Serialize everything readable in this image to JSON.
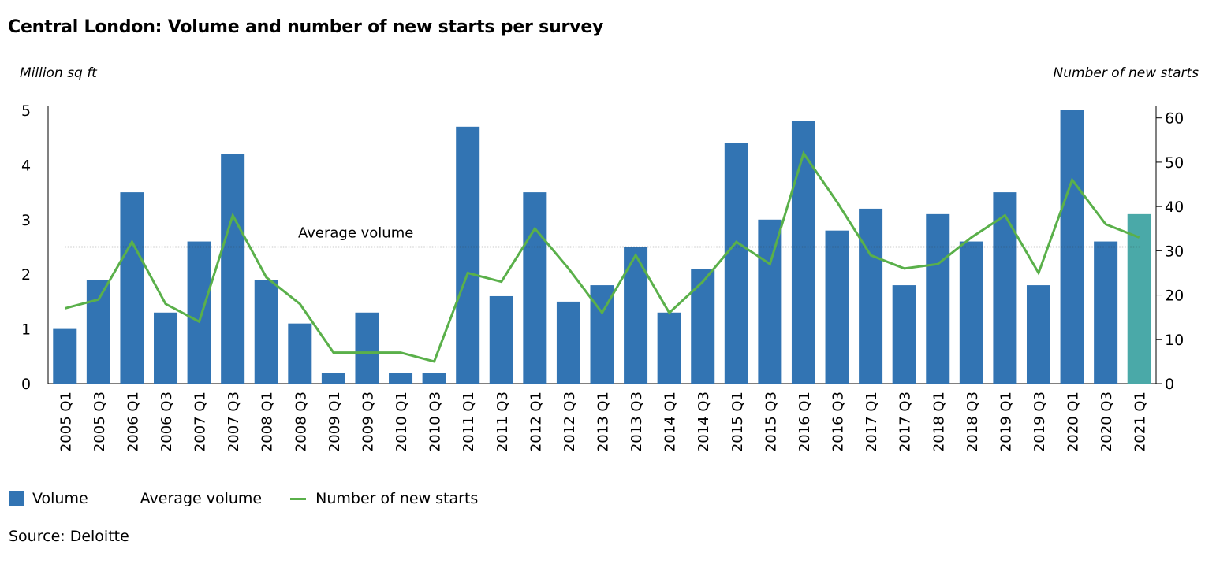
{
  "title": "Central London: Volume and number of new starts per survey",
  "source": "Source: Deloitte",
  "colors": {
    "volume": "#3274b3",
    "volume_highlight": "#4aa9a8",
    "starts_line": "#5ab04a",
    "average_line": "#333333"
  },
  "legend": {
    "volume": "Volume",
    "average": "Average volume",
    "starts": "Number of new starts"
  },
  "chart_data": {
    "type": "bar",
    "title": "Central London: Volume and number of new starts per survey",
    "ylabel": "Million sq ft",
    "y2label": "Number of new starts",
    "ylim": [
      0,
      5
    ],
    "y2lim": [
      0,
      60
    ],
    "yticks": [
      0,
      1,
      2,
      3,
      4,
      5
    ],
    "y2ticks": [
      0,
      10,
      20,
      30,
      40,
      50,
      60
    ],
    "average_volume": 2.5,
    "average_label": "Average volume",
    "legend_position": "bottom",
    "categories": [
      "2005 Q1",
      "2005 Q3",
      "2006 Q1",
      "2006 Q3",
      "2007 Q1",
      "2007 Q3",
      "2008 Q1",
      "2008 Q3",
      "2009 Q1",
      "2009 Q3",
      "2010 Q1",
      "2010 Q3",
      "2011 Q1",
      "2011 Q3",
      "2012 Q1",
      "2012 Q3",
      "2013 Q1",
      "2013 Q3",
      "2014 Q1",
      "2014 Q3",
      "2015 Q1",
      "2015 Q3",
      "2016 Q1",
      "2016 Q3",
      "2017 Q1",
      "2017 Q3",
      "2018 Q1",
      "2018 Q3",
      "2019 Q1",
      "2019 Q3",
      "2020 Q1",
      "2020 Q3",
      "2021 Q1"
    ],
    "series": [
      {
        "name": "Volume",
        "type": "bar",
        "axis": "left",
        "values": [
          1.0,
          1.9,
          3.5,
          1.3,
          2.6,
          4.2,
          1.9,
          1.1,
          0.2,
          1.3,
          0.2,
          0.2,
          4.7,
          1.6,
          3.5,
          1.5,
          1.8,
          2.5,
          1.3,
          2.1,
          4.4,
          3.0,
          4.8,
          2.8,
          3.2,
          1.8,
          3.1,
          2.6,
          3.5,
          1.8,
          5.0,
          2.6,
          3.1
        ]
      },
      {
        "name": "Number of new starts",
        "type": "line",
        "axis": "right",
        "values": [
          17,
          19,
          32,
          18,
          14,
          38,
          24,
          18,
          7,
          7,
          7,
          5,
          25,
          23,
          35,
          26,
          16,
          29,
          16,
          23,
          32,
          27,
          52,
          41,
          29,
          26,
          27,
          33,
          38,
          25,
          46,
          36,
          33
        ]
      }
    ],
    "highlight_category": "2021 Q1"
  }
}
